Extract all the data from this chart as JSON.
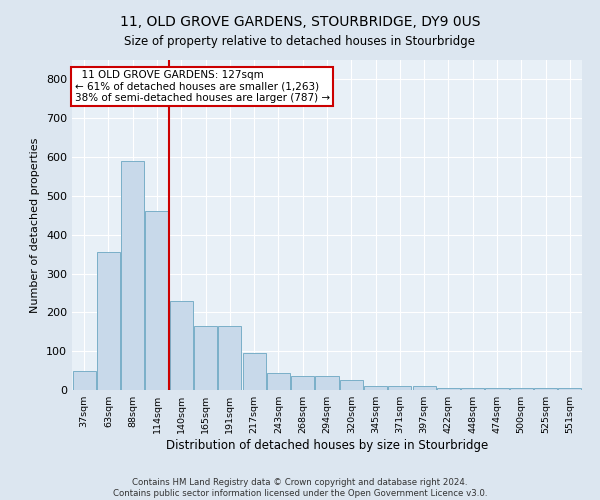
{
  "title": "11, OLD GROVE GARDENS, STOURBRIDGE, DY9 0US",
  "subtitle": "Size of property relative to detached houses in Stourbridge",
  "xlabel": "Distribution of detached houses by size in Stourbridge",
  "ylabel": "Number of detached properties",
  "footer1": "Contains HM Land Registry data © Crown copyright and database right 2024.",
  "footer2": "Contains public sector information licensed under the Open Government Licence v3.0.",
  "annotation_line1": "  11 OLD GROVE GARDENS: 127sqm  ",
  "annotation_line2": "← 61% of detached houses are smaller (1,263)",
  "annotation_line3": "38% of semi-detached houses are larger (787) →",
  "bar_color": "#c8d9ea",
  "bar_edge_color": "#7aafc8",
  "vline_color": "#cc0000",
  "categories": [
    "37sqm",
    "63sqm",
    "88sqm",
    "114sqm",
    "140sqm",
    "165sqm",
    "191sqm",
    "217sqm",
    "243sqm",
    "268sqm",
    "294sqm",
    "320sqm",
    "345sqm",
    "371sqm",
    "397sqm",
    "422sqm",
    "448sqm",
    "474sqm",
    "500sqm",
    "525sqm",
    "551sqm"
  ],
  "values": [
    50,
    355,
    590,
    460,
    230,
    165,
    165,
    95,
    45,
    35,
    35,
    25,
    10,
    10,
    10,
    5,
    5,
    5,
    5,
    5,
    5
  ],
  "ylim": [
    0,
    850
  ],
  "yticks": [
    0,
    100,
    200,
    300,
    400,
    500,
    600,
    700,
    800
  ],
  "vline_x_index": 3.5,
  "background_color": "#dce6f0",
  "plot_bg_color": "#e8f0f7"
}
